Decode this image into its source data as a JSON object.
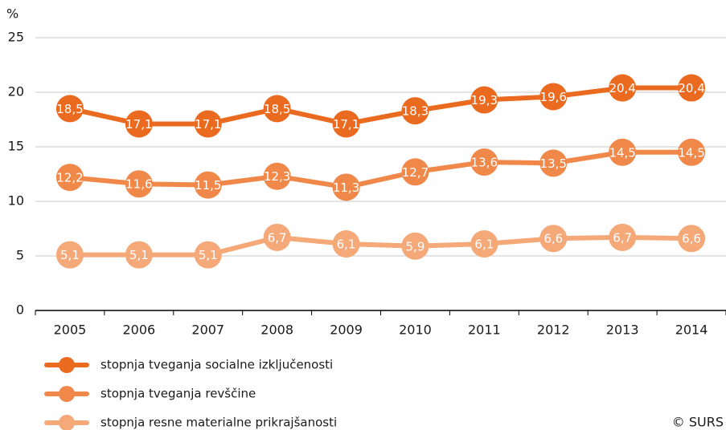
{
  "chart_data": {
    "type": "line",
    "y_unit_label": "%",
    "categories": [
      "2005",
      "2006",
      "2007",
      "2008",
      "2009",
      "2010",
      "2011",
      "2012",
      "2013",
      "2014"
    ],
    "series": [
      {
        "name": "stopnja tveganja socialne izključenosti",
        "color": "#ea6a1f",
        "values": [
          18.5,
          17.1,
          17.1,
          18.5,
          17.1,
          18.3,
          19.3,
          19.6,
          20.4,
          20.4
        ],
        "value_labels": [
          "18,5",
          "17,1",
          "17,1",
          "18,5",
          "17,1",
          "18,3",
          "19,3",
          "19,6",
          "20,4",
          "20,4"
        ]
      },
      {
        "name": "stopnja tveganja revščine",
        "color": "#f0884a",
        "values": [
          12.2,
          11.6,
          11.5,
          12.3,
          11.3,
          12.7,
          13.6,
          13.5,
          14.5,
          14.5
        ],
        "value_labels": [
          "12,2",
          "11,6",
          "11,5",
          "12,3",
          "11,3",
          "12,7",
          "13,6",
          "13,5",
          "14,5",
          "14,5"
        ]
      },
      {
        "name": "stopnja resne materialne prikrajšanosti",
        "color": "#f5a878",
        "values": [
          5.1,
          5.1,
          5.1,
          6.7,
          6.1,
          5.9,
          6.1,
          6.6,
          6.7,
          6.6
        ],
        "value_labels": [
          "5,1",
          "5,1",
          "5,1",
          "6,7",
          "6,1",
          "5,9",
          "6,1",
          "6,6",
          "6,7",
          "6,6"
        ]
      }
    ],
    "ylim": [
      0,
      25
    ],
    "yticks": [
      0,
      5,
      10,
      15,
      20,
      25
    ],
    "grid": true,
    "source": "© SURS"
  }
}
